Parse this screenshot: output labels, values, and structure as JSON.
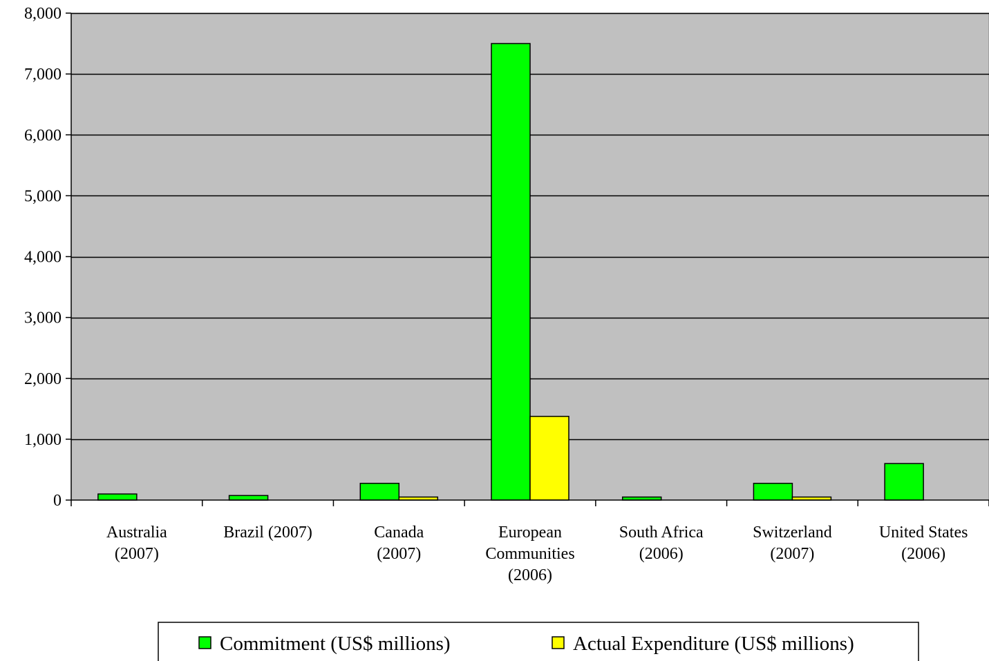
{
  "chart_data": {
    "type": "bar",
    "title": "",
    "xlabel": "",
    "ylabel": "",
    "ylim": [
      0,
      8000
    ],
    "yticks": [
      0,
      1000,
      2000,
      3000,
      4000,
      5000,
      6000,
      7000,
      8000
    ],
    "ytick_labels": [
      "0",
      "1,000",
      "2,000",
      "3,000",
      "4,000",
      "5,000",
      "6,000",
      "7,000",
      "8,000"
    ],
    "grid": true,
    "legend_position": "bottom",
    "categories": [
      [
        "Australia",
        "(2007)"
      ],
      [
        "Brazil (2007)"
      ],
      [
        "Canada",
        "(2007)"
      ],
      [
        "European",
        "Communities",
        "(2006)"
      ],
      [
        "South Africa",
        "(2006)"
      ],
      [
        "Switzerland",
        "(2007)"
      ],
      [
        "United States",
        "(2006)"
      ]
    ],
    "series": [
      {
        "name": "Commitment (US$ millions)",
        "color": "#00ff00",
        "values": [
          100,
          75,
          275,
          7500,
          50,
          275,
          600
        ]
      },
      {
        "name": "Actual Expenditure (US$ millions)",
        "color": "#ffff00",
        "values": [
          0,
          0,
          50,
          1375,
          0,
          50,
          0
        ]
      }
    ],
    "plot_background": "#c0c0c0"
  }
}
